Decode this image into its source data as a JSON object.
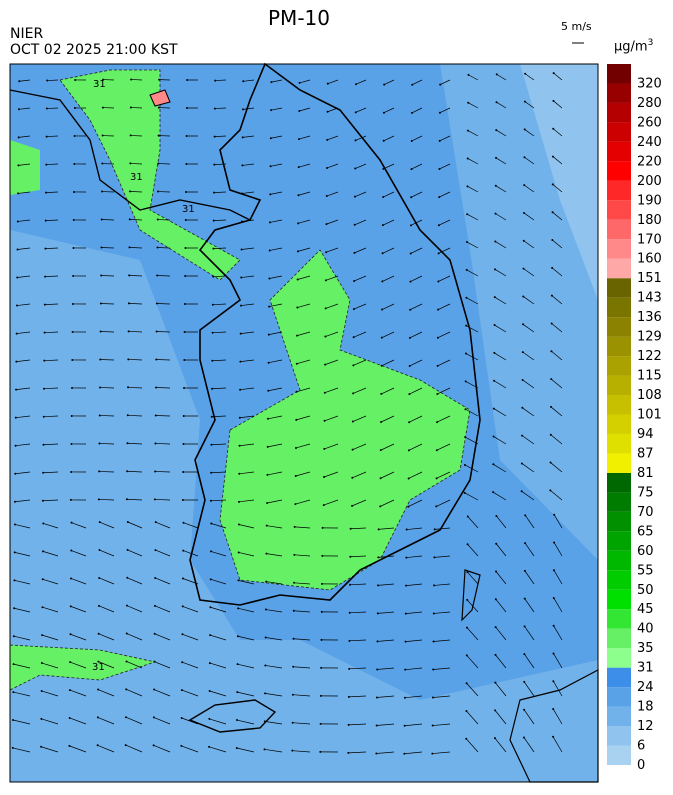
{
  "header": {
    "title": "PM-10",
    "agency": "NIER",
    "timestamp": "OCT 02 2025 21:00 KST",
    "wind_scale": "5 m/s",
    "unit": "µg/m",
    "unit_exponent": "3"
  },
  "map": {
    "contour_labels": [
      "31",
      "31",
      "31",
      "31"
    ]
  },
  "legend": {
    "levels": [
      {
        "value": 0,
        "color": "#a8d2f0"
      },
      {
        "value": 6,
        "color": "#90c4ee"
      },
      {
        "value": 12,
        "color": "#72b2ea"
      },
      {
        "value": 18,
        "color": "#5aa2e8"
      },
      {
        "value": 24,
        "color": "#3c8ee8"
      },
      {
        "value": 31,
        "color": "#8cff8c"
      },
      {
        "value": 35,
        "color": "#66f066"
      },
      {
        "value": 40,
        "color": "#33e633"
      },
      {
        "value": 45,
        "color": "#00e000"
      },
      {
        "value": 50,
        "color": "#00cc00"
      },
      {
        "value": 55,
        "color": "#00b800"
      },
      {
        "value": 60,
        "color": "#00a400"
      },
      {
        "value": 65,
        "color": "#009000"
      },
      {
        "value": 70,
        "color": "#007c00"
      },
      {
        "value": 75,
        "color": "#006800"
      },
      {
        "value": 81,
        "color": "#f0f000"
      },
      {
        "value": 87,
        "color": "#e0e000"
      },
      {
        "value": 94,
        "color": "#d4d000"
      },
      {
        "value": 101,
        "color": "#c6c000"
      },
      {
        "value": 108,
        "color": "#b8b000"
      },
      {
        "value": 115,
        "color": "#aaa200"
      },
      {
        "value": 122,
        "color": "#9a9200"
      },
      {
        "value": 129,
        "color": "#8a8200"
      },
      {
        "value": 136,
        "color": "#7a7400"
      },
      {
        "value": 143,
        "color": "#6a6400"
      },
      {
        "value": 151,
        "color": "#ffa8a8"
      },
      {
        "value": 160,
        "color": "#ff8888"
      },
      {
        "value": 170,
        "color": "#ff6868"
      },
      {
        "value": 180,
        "color": "#ff4848"
      },
      {
        "value": 190,
        "color": "#ff2828"
      },
      {
        "value": 200,
        "color": "#ff0000"
      },
      {
        "value": 220,
        "color": "#e40000"
      },
      {
        "value": 240,
        "color": "#cc0000"
      },
      {
        "value": 260,
        "color": "#b40000"
      },
      {
        "value": 280,
        "color": "#980000"
      },
      {
        "value": 320,
        "color": "#720000"
      }
    ]
  }
}
